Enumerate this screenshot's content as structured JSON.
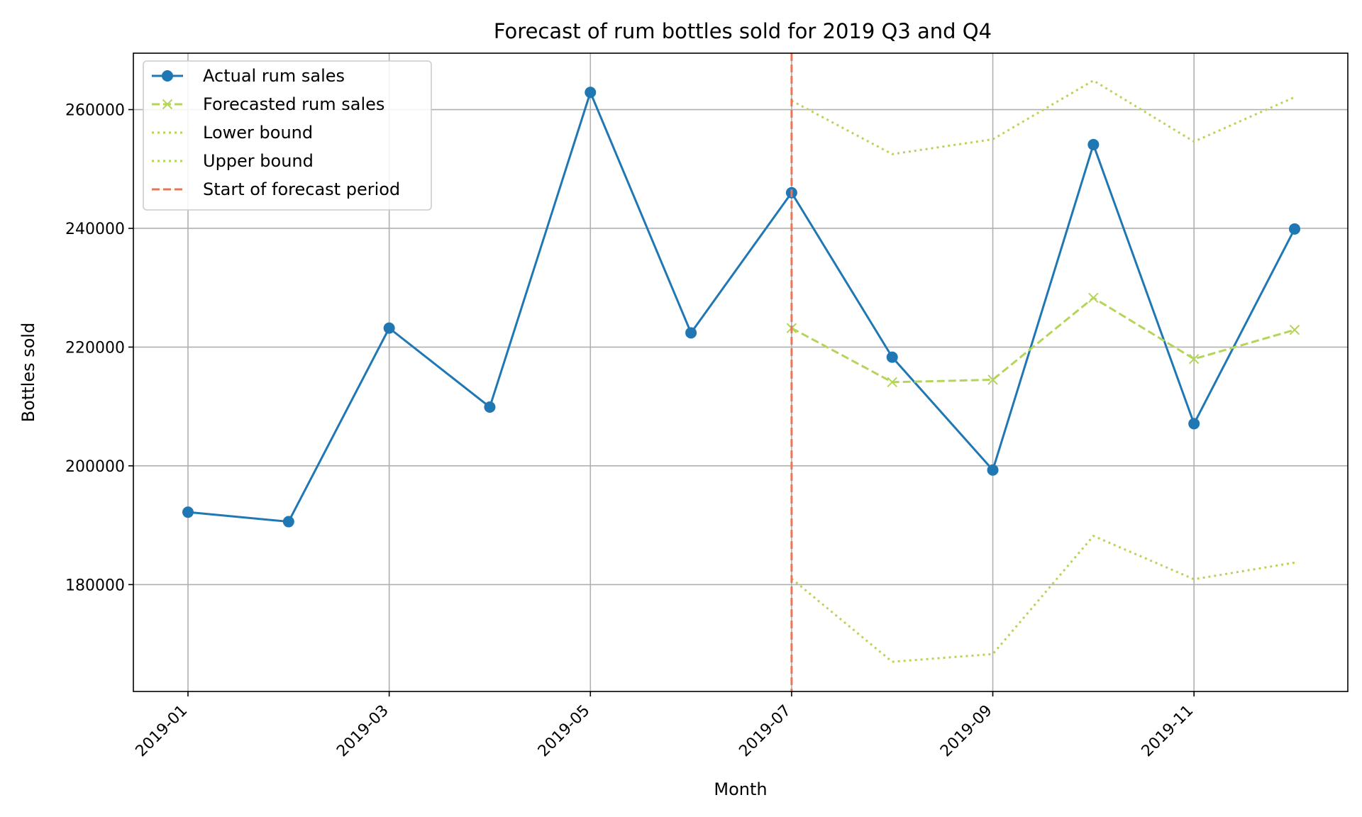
{
  "chart_data": {
    "type": "line",
    "title": "Forecast of rum bottles sold for 2019 Q3 and Q4",
    "xlabel": "Month",
    "ylabel": "Bottles sold",
    "x": [
      "2019-01",
      "2019-02",
      "2019-03",
      "2019-04",
      "2019-05",
      "2019-06",
      "2019-07",
      "2019-08",
      "2019-09",
      "2019-10",
      "2019-11",
      "2019-12"
    ],
    "x_tick_labels": [
      "2019-01",
      "2019-03",
      "2019-05",
      "2019-07",
      "2019-09",
      "2019-11"
    ],
    "y_ticks": [
      180000,
      200000,
      220000,
      240000,
      260000
    ],
    "y_tick_labels": [
      "180000",
      "200000",
      "220000",
      "240000",
      "260000"
    ],
    "ylim": [
      162000,
      269500
    ],
    "grid": true,
    "legend_position": "top-left",
    "series": [
      {
        "name": "Actual rum sales",
        "color": "#1f77b4",
        "style": "solid-circle",
        "x": [
          "2019-01",
          "2019-02",
          "2019-03",
          "2019-04",
          "2019-05",
          "2019-06",
          "2019-07",
          "2019-08",
          "2019-09",
          "2019-10",
          "2019-11",
          "2019-12"
        ],
        "values": [
          192200,
          190600,
          223200,
          209900,
          262900,
          222400,
          246000,
          218300,
          199300,
          254100,
          207100,
          239900
        ]
      },
      {
        "name": "Forecasted rum sales",
        "color": "#b5d55a",
        "style": "dashed-x",
        "x": [
          "2019-07",
          "2019-08",
          "2019-09",
          "2019-10",
          "2019-11",
          "2019-12"
        ],
        "values": [
          223200,
          214100,
          214500,
          228300,
          218000,
          222900
        ]
      },
      {
        "name": "Lower bound",
        "color": "#b5d55a",
        "style": "dotted",
        "x": [
          "2019-07",
          "2019-08",
          "2019-09",
          "2019-10",
          "2019-11",
          "2019-12"
        ],
        "values": [
          181000,
          167000,
          168300,
          188200,
          180900,
          183700
        ]
      },
      {
        "name": "Upper bound",
        "color": "#b5d55a",
        "style": "dotted",
        "x": [
          "2019-07",
          "2019-08",
          "2019-09",
          "2019-10",
          "2019-11",
          "2019-12"
        ],
        "values": [
          261500,
          252500,
          255000,
          264900,
          254600,
          262100
        ]
      }
    ],
    "vertical_line": {
      "name": "Start of forecast period",
      "x": "2019-07",
      "color": "#e8765b",
      "style": "dashed"
    }
  }
}
